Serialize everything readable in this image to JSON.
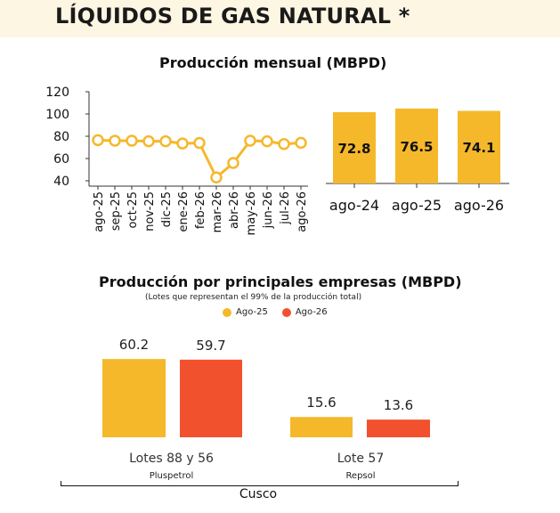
{
  "page": {
    "title": "LÍQUIDOS DE GAS NATURAL *"
  },
  "colors": {
    "yellow": "#f5b82b",
    "red": "#f2512d",
    "header_bg": "#fdf6e3"
  },
  "chart_data": [
    {
      "type": "line",
      "title": "Producción mensual (MBPD)",
      "x": [
        "ago-25",
        "sep-25",
        "oct-25",
        "nov-25",
        "dic-25",
        "ene-26",
        "feb-26",
        "mar-26",
        "abr-26",
        "may-26",
        "jun-26",
        "jul-26",
        "ago-26"
      ],
      "series": [
        {
          "values": [
            76.5,
            76,
            76,
            75.5,
            75.5,
            73.5,
            74,
            43,
            56,
            76,
            75.5,
            73,
            74.1
          ]
        }
      ],
      "yticks": [
        40,
        60,
        80,
        100,
        120
      ],
      "ylim": [
        40,
        120
      ],
      "color": "#f5b82b"
    },
    {
      "type": "bar",
      "categories": [
        "ago-24",
        "ago-25",
        "ago-26"
      ],
      "values": [
        72.8,
        76.5,
        74.1
      ],
      "labels": [
        "72.8",
        "76.5",
        "74.1"
      ],
      "color": "#f5b82b"
    },
    {
      "type": "bar",
      "title": "Producción por principales empresas (MBPD)",
      "subtitle": "(Lotes que representan el 99% de la producción total)",
      "legend_position": "top",
      "categories": [
        "Lotes 88 y 56",
        "Lote 57"
      ],
      "companies": [
        "Pluspetrol",
        "Repsol"
      ],
      "region": "Cusco",
      "series": [
        {
          "name": "Ago-25",
          "values": [
            60.2,
            15.6
          ],
          "labels": [
            "60.2",
            "15.6"
          ],
          "color": "#f5b82b"
        },
        {
          "name": "Ago-26",
          "values": [
            59.7,
            13.6
          ],
          "labels": [
            "59.7",
            "13.6"
          ],
          "color": "#f2512d"
        }
      ]
    }
  ]
}
